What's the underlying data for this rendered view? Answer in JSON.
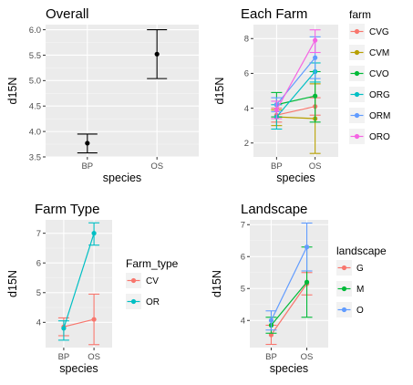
{
  "chart_data": [
    {
      "id": "overall",
      "type": "errorbar",
      "title": "Overall",
      "xlabel": "species",
      "ylabel": "d15N",
      "categories": [
        "BP",
        "OS"
      ],
      "ylim": [
        3.5,
        6.1
      ],
      "yticks": [
        3.5,
        4.0,
        4.5,
        5.0,
        5.5,
        6.0
      ],
      "ytick_labels": [
        "3.5",
        "4.0",
        "4.5",
        "5.0",
        "5.5",
        "6.0"
      ],
      "grid": true,
      "series": [
        {
          "color": "#000000",
          "values": [
            3.77,
            5.52
          ],
          "lower": [
            3.58,
            5.04
          ],
          "upper": [
            3.95,
            6.0
          ]
        }
      ]
    },
    {
      "id": "each-farm",
      "type": "line",
      "title": "Each Farm",
      "xlabel": "species",
      "ylabel": "d15N",
      "categories": [
        "BP",
        "OS"
      ],
      "ylim": [
        1.2,
        8.8
      ],
      "yticks": [
        2,
        4,
        6,
        8
      ],
      "ytick_labels": [
        "2",
        "4",
        "6",
        "8"
      ],
      "grid": true,
      "legend": {
        "title": "farm",
        "position": "right"
      },
      "series": [
        {
          "name": "CVG",
          "color": "#F8766D",
          "values": [
            3.6,
            4.1
          ],
          "lower": [
            3.2,
            3.6
          ],
          "upper": [
            4.0,
            4.6
          ]
        },
        {
          "name": "CVM",
          "color": "#B79F00",
          "values": [
            3.5,
            3.4
          ],
          "lower": [
            3.0,
            1.4
          ],
          "upper": [
            3.9,
            5.4
          ]
        },
        {
          "name": "CVO",
          "color": "#00BA38",
          "values": [
            4.2,
            4.7
          ],
          "lower": [
            3.5,
            3.2
          ],
          "upper": [
            4.9,
            6.1
          ]
        },
        {
          "name": "ORG",
          "color": "#00BFC4",
          "values": [
            3.5,
            6.1
          ],
          "lower": [
            2.8,
            5.5
          ],
          "upper": [
            4.2,
            6.6
          ]
        },
        {
          "name": "ORM",
          "color": "#619CFF",
          "values": [
            4.2,
            6.9
          ],
          "lower": [
            3.8,
            5.7
          ],
          "upper": [
            4.6,
            8.1
          ]
        },
        {
          "name": "ORO",
          "color": "#F564E3",
          "values": [
            3.9,
            7.9
          ],
          "lower": [
            3.4,
            7.2
          ],
          "upper": [
            4.4,
            8.5
          ]
        }
      ]
    },
    {
      "id": "farm-type",
      "type": "line",
      "title": "Farm Type",
      "xlabel": "species",
      "ylabel": "d15N",
      "categories": [
        "BP",
        "OS"
      ],
      "ylim": [
        3.15,
        7.45
      ],
      "yticks": [
        4,
        5,
        6,
        7
      ],
      "ytick_labels": [
        "4",
        "5",
        "6",
        "7"
      ],
      "grid": true,
      "legend": {
        "title": "Farm_type",
        "position": "right"
      },
      "series": [
        {
          "name": "CV",
          "color": "#F8766D",
          "values": [
            3.85,
            4.1
          ],
          "lower": [
            3.55,
            3.25
          ],
          "upper": [
            4.15,
            4.95
          ]
        },
        {
          "name": "OR",
          "color": "#00BFC4",
          "values": [
            3.8,
            7.0
          ],
          "lower": [
            3.4,
            6.6
          ],
          "upper": [
            4.05,
            7.35
          ]
        }
      ]
    },
    {
      "id": "landscape",
      "type": "line",
      "title": "Landscape",
      "xlabel": "species",
      "ylabel": "d15N",
      "categories": [
        "BP",
        "OS"
      ],
      "ylim": [
        3.15,
        7.15
      ],
      "yticks": [
        4,
        5,
        6,
        7
      ],
      "ytick_labels": [
        "4",
        "5",
        "6",
        "7"
      ],
      "grid": true,
      "legend": {
        "title": "landscape",
        "position": "right"
      },
      "series": [
        {
          "name": "G",
          "color": "#F8766D",
          "values": [
            3.55,
            5.15
          ],
          "lower": [
            3.25,
            4.8
          ],
          "upper": [
            3.85,
            5.5
          ]
        },
        {
          "name": "M",
          "color": "#00BA38",
          "values": [
            3.85,
            5.2
          ],
          "lower": [
            3.6,
            4.1
          ],
          "upper": [
            4.1,
            6.3
          ]
        },
        {
          "name": "O",
          "color": "#619CFF",
          "values": [
            4.0,
            6.3
          ],
          "lower": [
            3.7,
            5.55
          ],
          "upper": [
            4.3,
            7.05
          ]
        }
      ]
    }
  ]
}
